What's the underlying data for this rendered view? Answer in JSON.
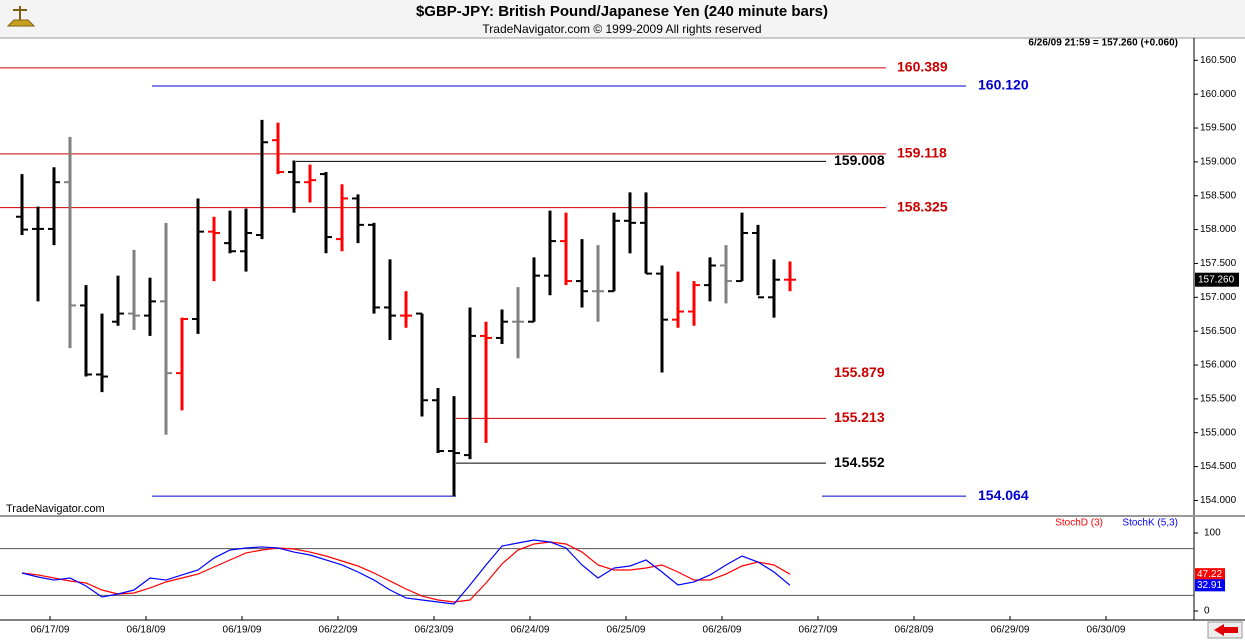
{
  "header": {
    "title": "$GBP-JPY:  British Pound/Japanese Yen  (240 minute bars)",
    "subtitle": "TradeNavigator.com © 1999-2009 All rights reserved",
    "info": "6/26/09 21:59 = 157.260 (+0.060)",
    "watermark": "TradeNavigator.com"
  },
  "chart_data": [
    {
      "type": "ohlc",
      "open": [
        158.19,
        158.01,
        158.01,
        158.7,
        156.88,
        155.86,
        156.64,
        156.76,
        156.73,
        156.94,
        155.88,
        156.68,
        157.97,
        157.8,
        157.68,
        157.92,
        159.32,
        158.85,
        158.7,
        158.82,
        157.86,
        158.46,
        158.07,
        156.85,
        156.73,
        156.76,
        155.48,
        154.73,
        154.67,
        156.43,
        156.4,
        156.64,
        156.64,
        157.32,
        157.83,
        157.24,
        157.09,
        157.09,
        158.13,
        158.1,
        157.35,
        156.67,
        156.79,
        157.18,
        157.47,
        157.24,
        157.95,
        157.0,
        157.26
      ],
      "high": [
        158.82,
        158.34,
        158.92,
        159.37,
        157.18,
        156.76,
        157.32,
        157.7,
        157.29,
        158.1,
        156.7,
        158.46,
        158.19,
        158.28,
        158.31,
        159.62,
        159.58,
        159.02,
        158.96,
        158.85,
        158.67,
        158.52,
        158.1,
        157.56,
        157.09,
        156.76,
        155.66,
        155.54,
        156.85,
        156.64,
        156.82,
        157.15,
        157.59,
        158.28,
        158.25,
        157.86,
        157.77,
        158.25,
        158.55,
        158.55,
        157.47,
        157.38,
        157.24,
        157.59,
        157.77,
        158.25,
        158.07,
        157.56,
        157.53
      ],
      "low": [
        157.92,
        156.94,
        157.77,
        156.25,
        155.83,
        155.6,
        156.58,
        156.52,
        156.43,
        154.97,
        155.33,
        156.46,
        157.24,
        157.65,
        157.38,
        157.86,
        158.82,
        158.25,
        158.4,
        157.65,
        157.68,
        157.8,
        156.76,
        156.37,
        156.55,
        155.24,
        154.7,
        154.06,
        154.61,
        154.85,
        156.31,
        156.1,
        156.64,
        157.03,
        157.18,
        156.85,
        156.64,
        157.09,
        157.65,
        157.35,
        155.89,
        156.55,
        156.58,
        156.94,
        156.91,
        157.24,
        157.03,
        156.7,
        157.09
      ],
      "close": [
        158.0,
        158.01,
        158.7,
        156.88,
        155.86,
        155.83,
        156.76,
        156.73,
        156.94,
        155.88,
        156.68,
        157.97,
        157.95,
        157.68,
        157.95,
        159.29,
        158.85,
        158.7,
        158.73,
        157.89,
        158.46,
        158.07,
        156.85,
        156.73,
        156.73,
        155.48,
        154.73,
        154.7,
        156.43,
        156.4,
        156.64,
        156.64,
        157.32,
        157.83,
        157.24,
        157.09,
        157.09,
        158.13,
        158.1,
        157.35,
        156.67,
        156.79,
        157.18,
        157.47,
        157.24,
        157.95,
        157.0,
        157.26,
        157.26
      ],
      "colors": [
        "#000000",
        "#000000",
        "#000000",
        "#808080",
        "#000000",
        "#000000",
        "#000000",
        "#808080",
        "#000000",
        "#808080",
        "#ff0000",
        "#000000",
        "#ff0000",
        "#000000",
        "#000000",
        "#000000",
        "#ff0000",
        "#000000",
        "#ff0000",
        "#000000",
        "#ff0000",
        "#000000",
        "#000000",
        "#000000",
        "#ff0000",
        "#000000",
        "#000000",
        "#000000",
        "#000000",
        "#ff0000",
        "#000000",
        "#808080",
        "#000000",
        "#000000",
        "#ff0000",
        "#000000",
        "#808080",
        "#000000",
        "#000000",
        "#000000",
        "#000000",
        "#ff0000",
        "#ff0000",
        "#000000",
        "#808080",
        "#000000",
        "#000000",
        "#000000",
        "#ff0000"
      ],
      "ylim": [
        153.8,
        160.8
      ],
      "yticks": [
        {
          "value": 154,
          "label": "154.000"
        },
        {
          "value": 154.5,
          "label": "154.500"
        },
        {
          "value": 155,
          "label": "155.000"
        },
        {
          "value": 155.5,
          "label": "155.500"
        },
        {
          "value": 156,
          "label": "156.000"
        },
        {
          "value": 156.5,
          "label": "156.500"
        },
        {
          "value": 157,
          "label": "157.000"
        },
        {
          "value": 157.5,
          "label": "157.500"
        },
        {
          "value": 158,
          "label": "158.000"
        },
        {
          "value": 158.5,
          "label": "158.500"
        },
        {
          "value": 159,
          "label": "159.000"
        },
        {
          "value": 159.5,
          "label": "159.500"
        },
        {
          "value": 160,
          "label": "160.000"
        },
        {
          "value": 160.5,
          "label": "160.500"
        }
      ],
      "last": {
        "value": 157.26,
        "label": "157.260"
      },
      "levels": [
        {
          "value": 160.389,
          "color": "#cc0000"
        },
        {
          "value": 160.12,
          "label": "160.120",
          "color": "#0000cc"
        },
        {
          "value": 159.118,
          "color": "#cc0000"
        },
        {
          "value": 159.008,
          "color": "#000000"
        },
        {
          "value": 158.325,
          "color": "#cc0000"
        },
        {
          "value": 155.879,
          "color": "#cc0000"
        },
        {
          "value": 155.213,
          "color": "#cc0000"
        },
        {
          "value": 154.552,
          "color": "#000000"
        },
        {
          "value": 154.064,
          "color": "#0000cc"
        }
      ],
      "categories": [
        "06/17/09",
        "06/18/09",
        "06/19/09",
        "06/22/09",
        "06/23/09",
        "06/24/09",
        "06/25/09",
        "06/26/09",
        "06/27/09",
        "06/28/09",
        "06/29/09",
        "06/30/09"
      ]
    },
    {
      "type": "line",
      "ylim": [
        0,
        100
      ],
      "yticks": [
        0,
        100
      ],
      "levels": [
        20,
        80
      ],
      "series": [
        {
          "name": "StochD (3)",
          "color": "#ff0000",
          "values": [
            48.7,
            46.2,
            42.3,
            38.5,
            35.9,
            26.9,
            21.8,
            23.1,
            29.5,
            37.2,
            42.3,
            47.4,
            56.4,
            65.4,
            74.4,
            78.2,
            80.8,
            79.5,
            75.6,
            70.5,
            64.1,
            57.7,
            48.7,
            38.5,
            28.2,
            19.2,
            14.1,
            11.5,
            14.1,
            35.9,
            60.3,
            78.2,
            85.9,
            88.5,
            85.9,
            75.6,
            59.0,
            52.6,
            52.6,
            55.1,
            59.0,
            50.0,
            39.7,
            39.7,
            47.4,
            57.7,
            62.8,
            59.0,
            47.22
          ]
        },
        {
          "name": "StochK (5,3)",
          "color": "#0000ff",
          "values": [
            48.7,
            43.6,
            39.7,
            42.3,
            32.1,
            17.9,
            21.8,
            26.9,
            42.3,
            39.7,
            46.2,
            52.6,
            67.9,
            78.2,
            80.8,
            82.1,
            80.8,
            75.6,
            71.8,
            65.4,
            59.0,
            50.0,
            39.7,
            26.9,
            16.7,
            14.1,
            11.5,
            9.0,
            33.3,
            59.0,
            83.3,
            87.2,
            91.0,
            88.5,
            80.8,
            59.0,
            42.3,
            55.1,
            57.7,
            65.4,
            50.0,
            33.3,
            37.2,
            46.2,
            59.0,
            70.5,
            62.8,
            50.0,
            32.91
          ]
        }
      ]
    }
  ]
}
